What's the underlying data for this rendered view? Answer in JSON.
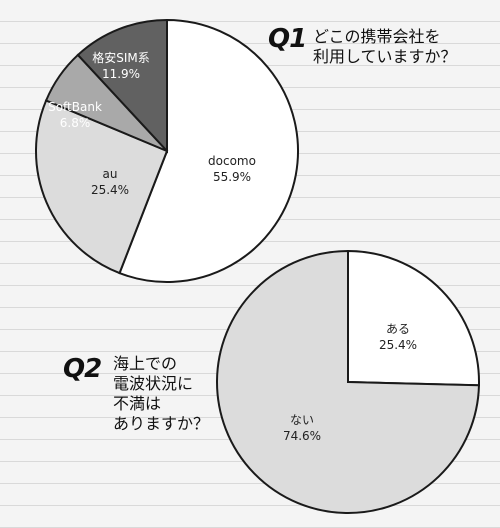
{
  "q1": {
    "label": "Q1",
    "question": "どこの携帯会社を\n利用していますか？"
  },
  "q2": {
    "label": "Q2",
    "question": "海上での\n電波状況に\n不満は\nありますか？"
  },
  "chart_data": [
    {
      "type": "pie",
      "title": "",
      "slices": [
        {
          "label": "docomo",
          "value": 55.9,
          "value_label": "55.9%",
          "color": "#ffffff",
          "text_color": "#222222"
        },
        {
          "label": "au",
          "value": 25.4,
          "value_label": "25.4%",
          "color": "#dcdcdc",
          "text_color": "#222222"
        },
        {
          "label": "SoftBank",
          "value": 6.8,
          "value_label": "6.8%",
          "color": "#a9a9a9",
          "text_color": "#ffffff"
        },
        {
          "label": "格安SIM系",
          "value": 11.9,
          "value_label": "11.9%",
          "color": "#616161",
          "text_color": "#ffffff"
        }
      ]
    },
    {
      "type": "pie",
      "title": "",
      "slices": [
        {
          "label": "ある",
          "value": 25.4,
          "value_label": "25.4%",
          "color": "#ffffff",
          "text_color": "#222222"
        },
        {
          "label": "ない",
          "value": 74.6,
          "value_label": "74.6%",
          "color": "#dcdcdc",
          "text_color": "#222222"
        }
      ]
    }
  ]
}
